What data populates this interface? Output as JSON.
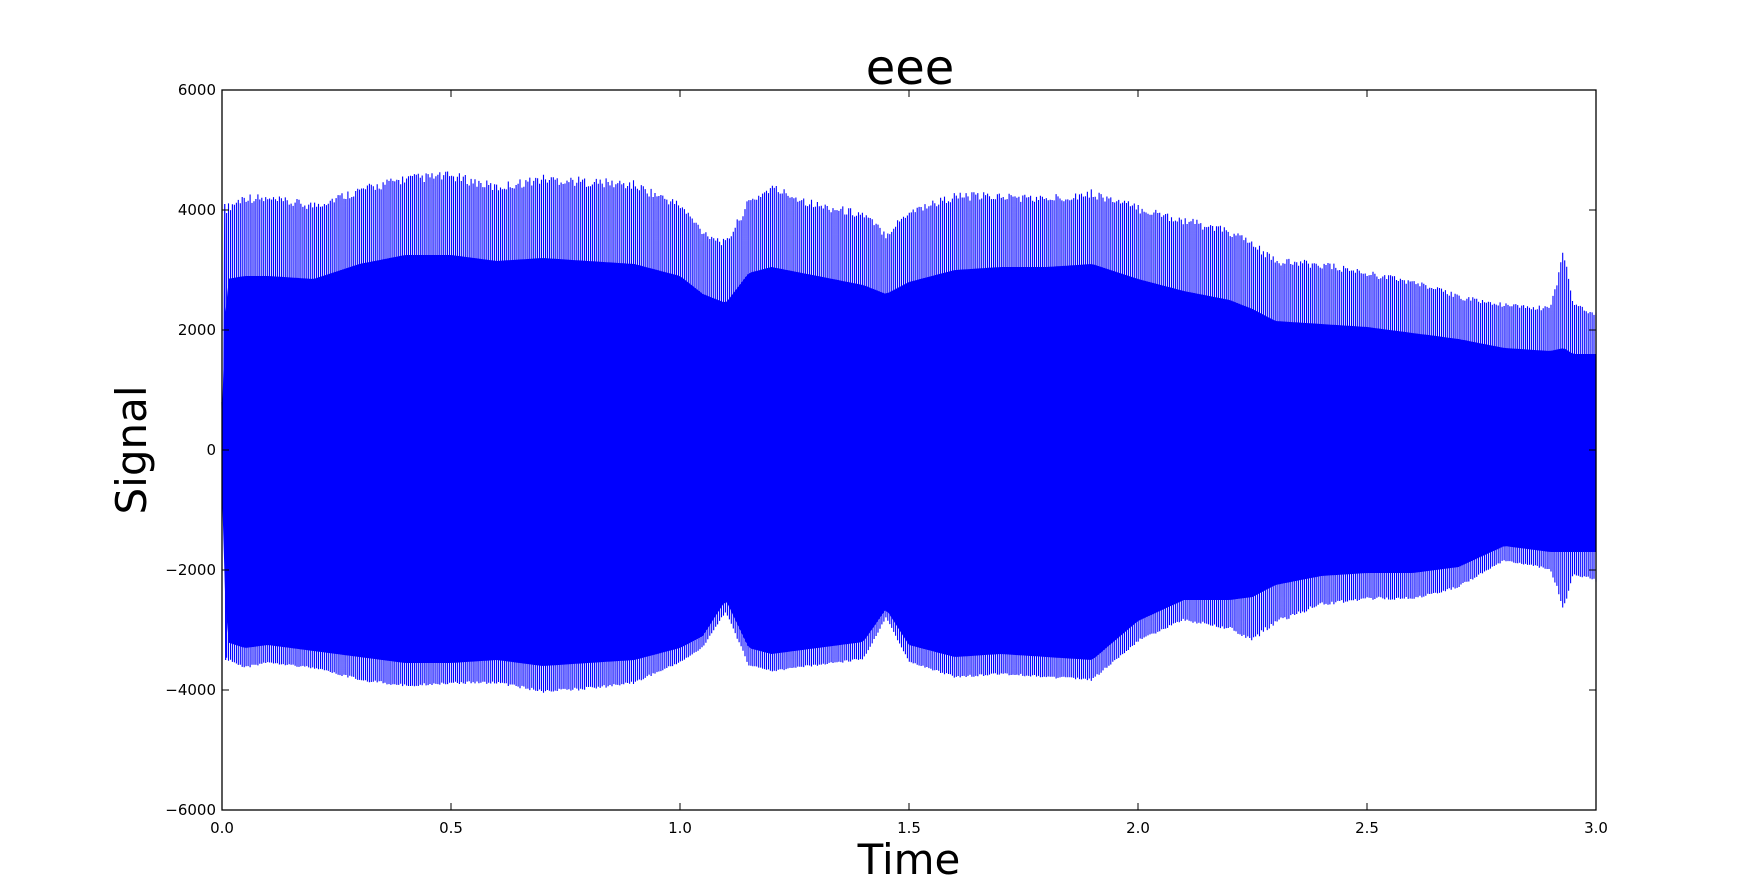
{
  "chart_data": {
    "type": "line",
    "title": "eee",
    "xlabel": "Time",
    "ylabel": "Signal",
    "xlim": [
      0.0,
      3.0
    ],
    "ylim": [
      -6000,
      6000
    ],
    "grid": false,
    "line_color": "#0000ff",
    "xticks": [
      0.0,
      0.5,
      1.0,
      1.5,
      2.0,
      2.5,
      3.0
    ],
    "xtick_labels": [
      "0.0",
      "0.5",
      "1.0",
      "1.5",
      "2.0",
      "2.5",
      "3.0"
    ],
    "yticks": [
      -6000,
      -4000,
      -2000,
      0,
      2000,
      4000,
      6000
    ],
    "ytick_labels": [
      "−6000",
      "−4000",
      "−2000",
      "0",
      "2000",
      "4000",
      "6000"
    ],
    "series": [
      {
        "envelope": {
          "x": [
            0.0,
            0.01,
            0.05,
            0.1,
            0.2,
            0.3,
            0.4,
            0.5,
            0.6,
            0.7,
            0.8,
            0.9,
            1.0,
            1.05,
            1.1,
            1.15,
            1.2,
            1.3,
            1.4,
            1.45,
            1.5,
            1.6,
            1.7,
            1.8,
            1.9,
            2.0,
            2.1,
            2.2,
            2.25,
            2.3,
            2.4,
            2.5,
            2.6,
            2.7,
            2.8,
            2.9,
            2.93,
            2.95,
            3.0
          ],
          "outer_upper": [
            800,
            4100,
            4300,
            4250,
            4150,
            4400,
            4600,
            4650,
            4450,
            4600,
            4550,
            4500,
            4150,
            3700,
            3500,
            4200,
            4450,
            4150,
            4000,
            3650,
            4050,
            4300,
            4300,
            4250,
            4350,
            4100,
            3900,
            3700,
            3500,
            3200,
            3150,
            3000,
            2850,
            2600,
            2450,
            2400,
            3400,
            2500,
            2300
          ],
          "outer_lower": [
            -900,
            -3500,
            -3650,
            -3550,
            -3650,
            -3850,
            -3950,
            -3900,
            -3900,
            -4050,
            -4000,
            -3900,
            -3550,
            -3300,
            -2700,
            -3600,
            -3700,
            -3600,
            -3500,
            -2800,
            -3550,
            -3800,
            -3750,
            -3800,
            -3850,
            -3200,
            -2850,
            -3000,
            -3200,
            -2900,
            -2600,
            -2500,
            -2500,
            -2300,
            -1850,
            -2000,
            -2700,
            -2100,
            -2200
          ],
          "inner_upper": [
            600,
            2850,
            2900,
            2900,
            2850,
            3100,
            3250,
            3250,
            3150,
            3200,
            3150,
            3100,
            2900,
            2600,
            2450,
            2950,
            3050,
            2900,
            2750,
            2600,
            2800,
            3000,
            3050,
            3050,
            3100,
            2850,
            2650,
            2500,
            2350,
            2150,
            2100,
            2050,
            1950,
            1850,
            1700,
            1650,
            1700,
            1600,
            1600
          ],
          "inner_lower": [
            -700,
            -3200,
            -3300,
            -3250,
            -3350,
            -3450,
            -3550,
            -3550,
            -3500,
            -3600,
            -3550,
            -3500,
            -3300,
            -3100,
            -2500,
            -3300,
            -3400,
            -3300,
            -3200,
            -2650,
            -3250,
            -3450,
            -3400,
            -3450,
            -3500,
            -2850,
            -2500,
            -2500,
            -2450,
            -2250,
            -2100,
            -2050,
            -2050,
            -1950,
            -1600,
            -1700,
            -1700,
            -1700,
            -1700
          ]
        }
      }
    ]
  }
}
